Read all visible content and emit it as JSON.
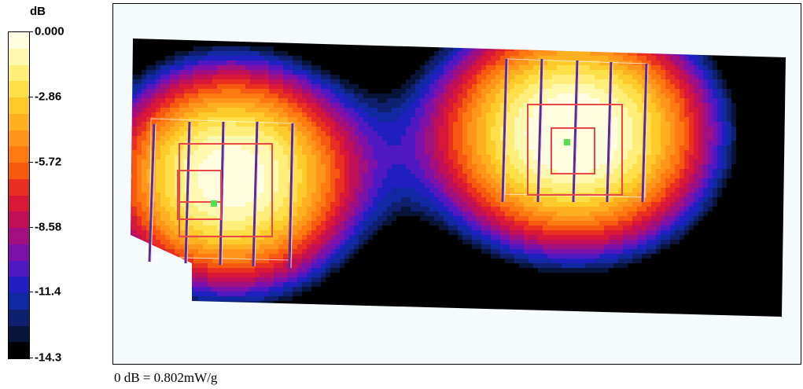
{
  "chart_data": {
    "type": "heatmap",
    "title": "",
    "colorbar": {
      "unit_label": "dB",
      "tick_labels": [
        "0.000",
        "-2.86",
        "-5.72",
        "-8.58",
        "-11.4",
        "-14.3"
      ],
      "range": [
        -14.3,
        0.0
      ],
      "levels": 20,
      "colors": [
        "#fffde0",
        "#fff8b0",
        "#ffef7a",
        "#ffe04a",
        "#ffcb2a",
        "#ffb020",
        "#ff951a",
        "#ff7a10",
        "#f55a10",
        "#e83020",
        "#d81838",
        "#c01058",
        "#a01080",
        "#7c10a8",
        "#5018c0",
        "#2020c0",
        "#1028a0",
        "#102070",
        "#081438",
        "#000000"
      ]
    },
    "reference": "0 dB = 0.802mW/g",
    "hotspots": [
      {
        "name": "left-peak",
        "value_db": 0.0
      },
      {
        "name": "right-peak",
        "value_db": 0.0
      }
    ],
    "colors": {
      "background": "#f5fbfd",
      "grid_red": "#e84848",
      "marker_green": "#50e050"
    }
  }
}
